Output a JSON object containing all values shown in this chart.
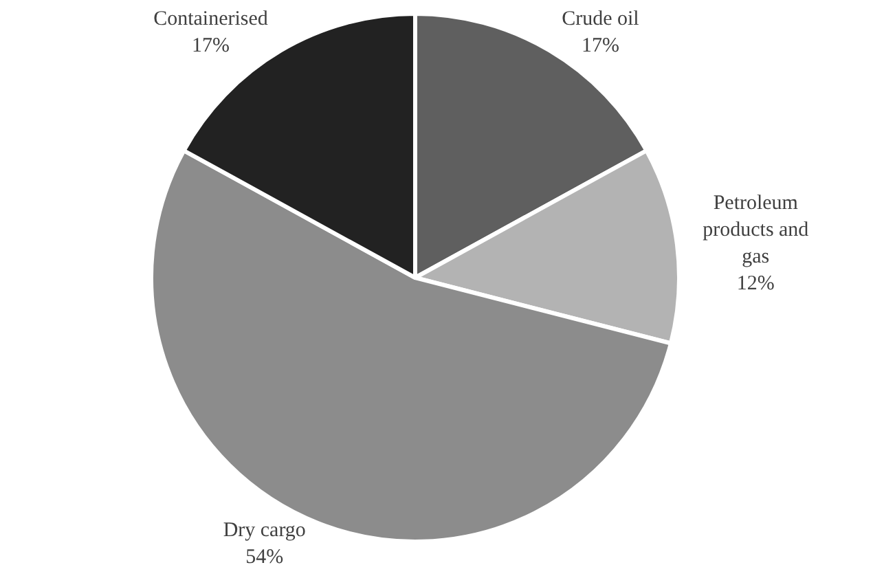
{
  "chart_data": {
    "type": "pie",
    "categories": [
      "Crude oil",
      "Petroleum products and gas",
      "Dry cargo",
      "Containerised"
    ],
    "values": [
      17,
      12,
      54,
      17
    ],
    "value_labels": [
      "17%",
      "12%",
      "54%",
      "17%"
    ],
    "colors": [
      "#5f5f5f",
      "#b3b3b3",
      "#8c8c8c",
      "#222222"
    ],
    "legend": false
  }
}
